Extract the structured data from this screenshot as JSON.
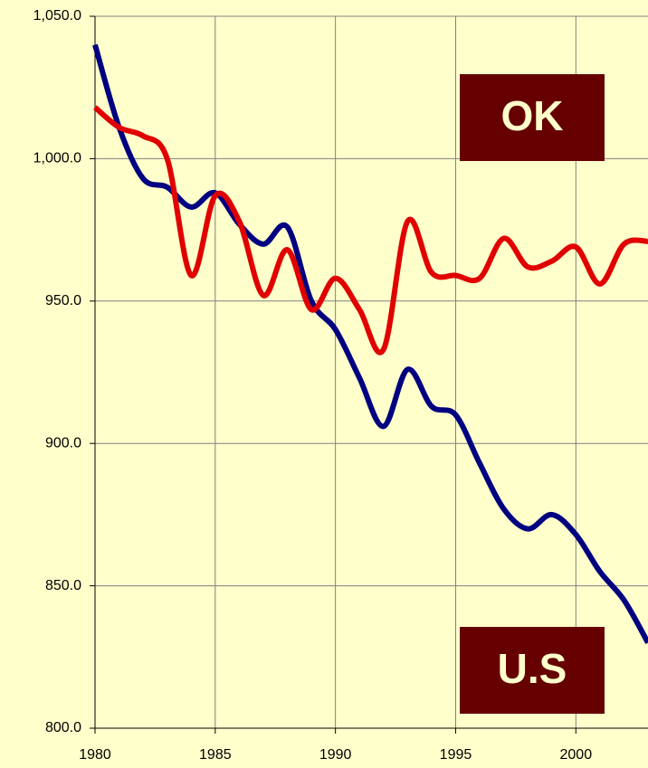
{
  "chart_data": {
    "type": "line",
    "x": [
      1980,
      1981,
      1982,
      1983,
      1984,
      1985,
      1986,
      1987,
      1988,
      1989,
      1990,
      1991,
      1992,
      1993,
      1994,
      1995,
      1996,
      1997,
      1998,
      1999,
      2000,
      2001,
      2002,
      2003
    ],
    "series": [
      {
        "name": "U.S",
        "color": "#000080",
        "values": [
          1040,
          1011,
          993,
          990,
          983,
          988,
          977,
          970,
          976,
          950,
          940,
          923,
          906,
          926,
          913,
          910,
          893,
          877,
          870,
          875,
          868,
          855,
          845,
          830
        ]
      },
      {
        "name": "OK",
        "color": "#e00000",
        "values": [
          1018,
          1011,
          1008,
          1000,
          959,
          987,
          978,
          952,
          968,
          947,
          958,
          947,
          933,
          978,
          960,
          959,
          958,
          972,
          962,
          964,
          969,
          956,
          970,
          971
        ]
      }
    ],
    "xlim": [
      1980,
      2003
    ],
    "xticks": [
      1980,
      1985,
      1990,
      1995,
      2000
    ],
    "ylim": [
      800,
      1050
    ],
    "yticks": [
      {
        "value": 800,
        "label": "800.0"
      },
      {
        "value": 850,
        "label": "850.0"
      },
      {
        "value": 900,
        "label": "900.0"
      },
      {
        "value": 950,
        "label": "950.0"
      },
      {
        "value": 1000,
        "label": "1,000.0"
      },
      {
        "value": 1050,
        "label": "1,050.0"
      }
    ],
    "grid": true
  }
}
